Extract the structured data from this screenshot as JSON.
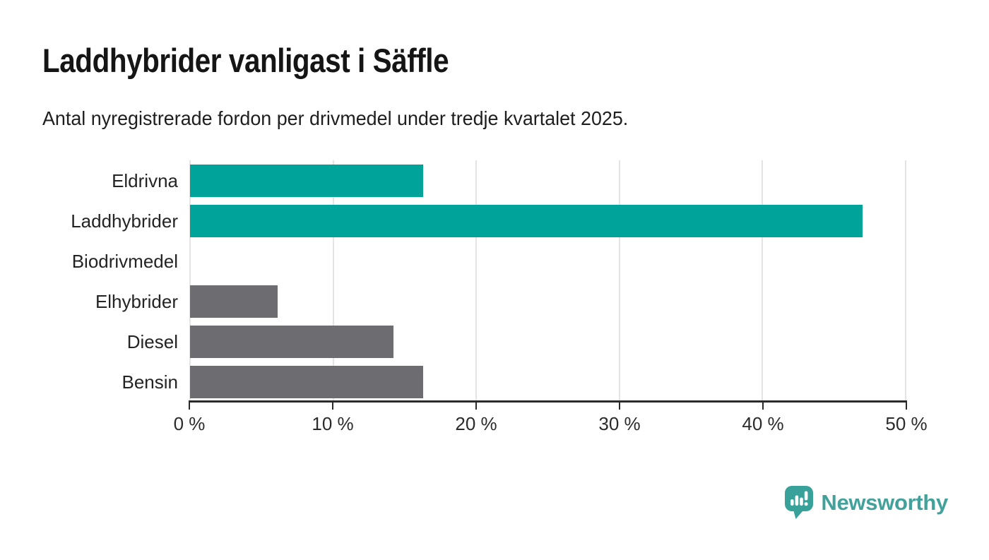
{
  "header": {
    "title": "Laddhybrider vanligast i Säffle",
    "subtitle": "Antal nyregistrerade fordon per drivmedel under tredje kvartalet 2025."
  },
  "chart_data": {
    "type": "bar",
    "orientation": "horizontal",
    "title": "Laddhybrider vanligast i Säffle",
    "subtitle": "Antal nyregistrerade fordon per drivmedel under tredje kvartalet 2025.",
    "categories": [
      "Eldrivna",
      "Laddhybrider",
      "Biodrivmedel",
      "Elhybrider",
      "Diesel",
      "Bensin"
    ],
    "values": [
      16.3,
      47.0,
      0,
      6.1,
      14.2,
      16.3
    ],
    "unit": "%",
    "xlim": [
      0,
      50
    ],
    "x_ticks": [
      0,
      10,
      20,
      30,
      40,
      50
    ],
    "x_tick_labels": [
      "0 %",
      "10 %",
      "20 %",
      "30 %",
      "40 %",
      "50 %"
    ],
    "bar_colors": [
      "#00a399",
      "#00a399",
      "#6c6c71",
      "#6c6c71",
      "#6c6c71",
      "#6c6c71"
    ],
    "grid": true,
    "legend": "none"
  },
  "colors": {
    "highlight": "#00a399",
    "neutral": "#6c6c71",
    "gridline": "#e4e4e4",
    "axis": "#2b2b2b",
    "logo_teal": "#42a19a"
  },
  "footer": {
    "brand": "Newsworthy"
  }
}
